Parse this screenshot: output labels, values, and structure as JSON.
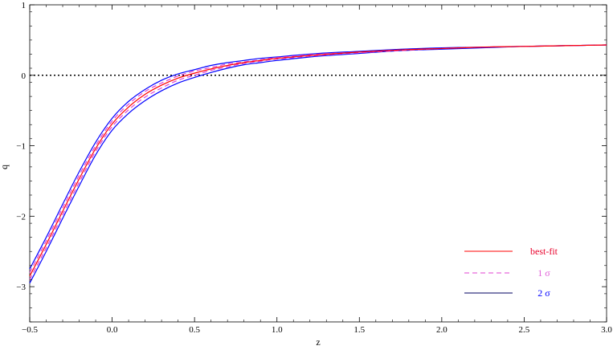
{
  "chart_data": {
    "type": "line",
    "xlabel": "z",
    "ylabel": "q",
    "xlim": [
      -0.5,
      3.0
    ],
    "ylim": [
      -3.5,
      1.0
    ],
    "x_ticks": [
      -0.5,
      0.0,
      0.5,
      1.0,
      1.5,
      2.0,
      2.5,
      3.0
    ],
    "x_tick_labels": [
      "−0.5",
      "0.0",
      "0.5",
      "1.0",
      "1.5",
      "2.0",
      "2.5",
      "3.0"
    ],
    "y_ticks": [
      -3,
      -2,
      -1,
      0,
      1
    ],
    "y_tick_labels": [
      "−3",
      "−2",
      "−1",
      "0",
      "1"
    ],
    "reference_line": {
      "y": 0,
      "style": "dotted",
      "color": "#000000"
    },
    "x": [
      -0.5,
      -0.4,
      -0.3,
      -0.2,
      -0.1,
      0.0,
      0.1,
      0.2,
      0.3,
      0.4,
      0.5,
      0.6,
      0.7,
      0.8,
      0.9,
      1.0,
      1.25,
      1.5,
      1.75,
      2.0,
      2.25,
      2.5,
      2.75,
      3.0
    ],
    "series": [
      {
        "name": "best-fit",
        "color": "#ff0000",
        "style": "solid",
        "values": [
          -2.85,
          -2.4,
          -1.93,
          -1.47,
          -1.04,
          -0.69,
          -0.45,
          -0.27,
          -0.14,
          -0.04,
          0.03,
          0.09,
          0.14,
          0.18,
          0.21,
          0.24,
          0.29,
          0.33,
          0.36,
          0.38,
          0.4,
          0.41,
          0.42,
          0.43
        ]
      },
      {
        "name": "1 σ",
        "color": "#e040d0",
        "style": "dashed",
        "values": [
          -2.8,
          -2.35,
          -1.88,
          -1.42,
          -1.0,
          -0.65,
          -0.41,
          -0.23,
          -0.11,
          -0.01,
          0.06,
          0.11,
          0.16,
          0.19,
          0.22,
          0.25,
          0.3,
          0.33,
          0.36,
          0.38,
          0.4,
          0.41,
          0.42,
          0.43
        ]
      },
      {
        "name": "1 σ lower",
        "color": "#e040d0",
        "style": "dashed",
        "values": [
          -2.9,
          -2.45,
          -1.98,
          -1.52,
          -1.08,
          -0.73,
          -0.49,
          -0.31,
          -0.18,
          -0.07,
          0.0,
          0.07,
          0.12,
          0.17,
          0.2,
          0.23,
          0.28,
          0.32,
          0.35,
          0.38,
          0.4,
          0.41,
          0.42,
          0.43
        ]
      },
      {
        "name": "2 σ",
        "color": "#0000ff",
        "style": "solid",
        "values": [
          -2.75,
          -2.3,
          -1.83,
          -1.37,
          -0.95,
          -0.61,
          -0.37,
          -0.2,
          -0.07,
          0.02,
          0.08,
          0.14,
          0.18,
          0.21,
          0.24,
          0.26,
          0.31,
          0.34,
          0.37,
          0.39,
          0.4,
          0.41,
          0.42,
          0.43
        ]
      },
      {
        "name": "2 σ lower",
        "color": "#0000ff",
        "style": "solid",
        "values": [
          -2.95,
          -2.5,
          -2.03,
          -1.57,
          -1.13,
          -0.78,
          -0.54,
          -0.36,
          -0.22,
          -0.11,
          -0.03,
          0.04,
          0.1,
          0.15,
          0.18,
          0.21,
          0.27,
          0.31,
          0.35,
          0.37,
          0.39,
          0.41,
          0.42,
          0.43
        ]
      }
    ],
    "legend": {
      "placement": "bottom-right",
      "entries": [
        {
          "label": "best-fit",
          "color": "#ff0000",
          "text_color": "#e8002a",
          "style": "solid"
        },
        {
          "label": "1 σ",
          "color": "#e040d0",
          "text_color": "#e060d8",
          "style": "dashed"
        },
        {
          "label": "2 σ",
          "color": "#000060",
          "text_color": "#0000ff",
          "style": "solid"
        }
      ]
    }
  }
}
